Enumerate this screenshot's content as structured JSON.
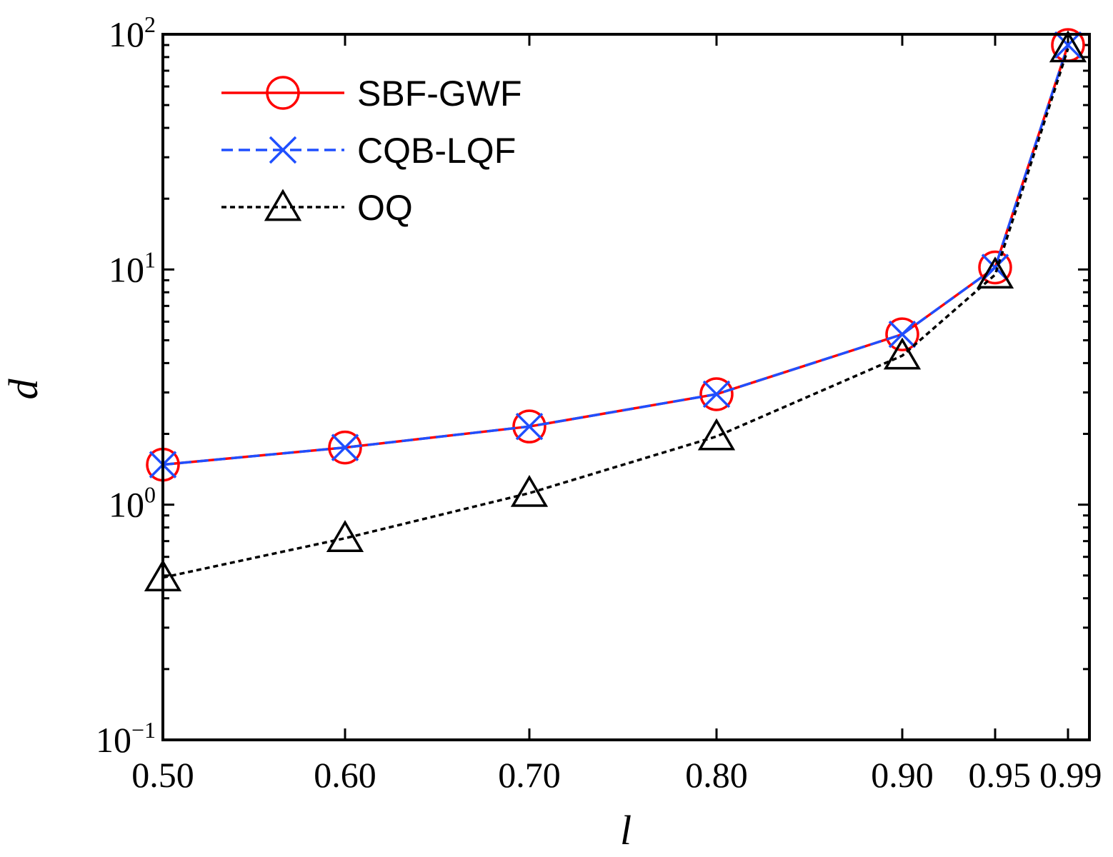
{
  "chart_data": {
    "type": "line",
    "title": "",
    "xlabel": "l",
    "ylabel": "d",
    "yscale": "log",
    "ylim": [
      0.1,
      100
    ],
    "categories": [
      "0.50",
      "0.60",
      "0.70",
      "0.80",
      "0.90",
      "0.95",
      "0.99"
    ],
    "x": [
      0.5,
      0.6,
      0.7,
      0.8,
      0.9,
      0.95,
      0.99
    ],
    "y_ticks": [
      {
        "value": 0.1,
        "base": "10",
        "exp": "−1"
      },
      {
        "value": 1,
        "base": "10",
        "exp": "0"
      },
      {
        "value": 10,
        "base": "10",
        "exp": "1"
      },
      {
        "value": 100,
        "base": "10",
        "exp": "2"
      }
    ],
    "legend_position": "top-left",
    "series": [
      {
        "name": "SBF-GWF",
        "color": "#ff0000",
        "dash": "solid",
        "marker": "circle",
        "values": [
          1.48,
          1.75,
          2.15,
          2.95,
          5.3,
          10.2,
          90
        ]
      },
      {
        "name": "CQB-LQF",
        "color": "#1f4fff",
        "dash": "dashed",
        "marker": "x",
        "values": [
          1.48,
          1.75,
          2.15,
          2.95,
          5.3,
          10.2,
          90
        ]
      },
      {
        "name": "OQ",
        "color": "#000000",
        "dash": "dotted",
        "marker": "triangle",
        "values": [
          0.49,
          0.72,
          1.12,
          1.95,
          4.3,
          9.5,
          87
        ]
      }
    ]
  }
}
